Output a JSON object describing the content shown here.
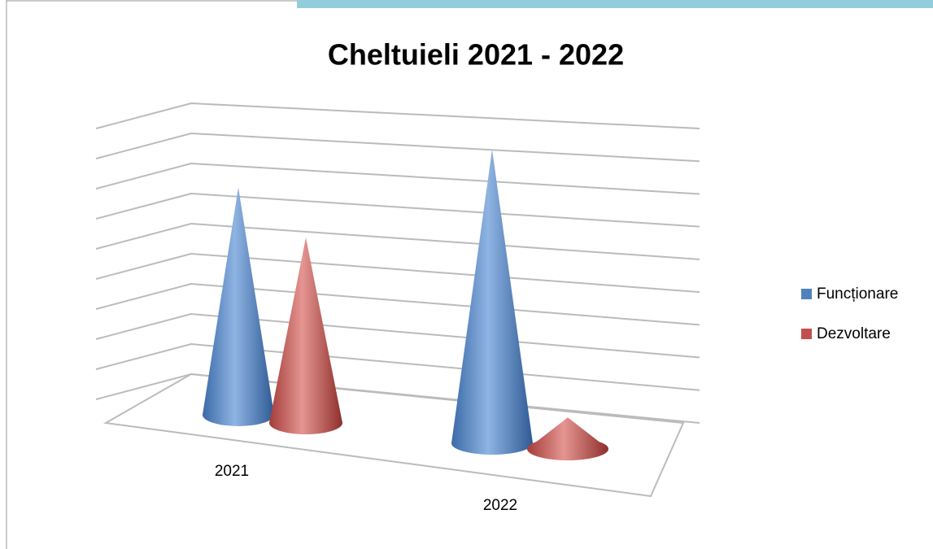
{
  "chart_data": {
    "type": "cone3d",
    "title": "Cheltuieli 2021 - 2022",
    "categories": [
      "2021",
      "2022"
    ],
    "series": [
      {
        "name": "Funcționare",
        "color": "#4f81bd",
        "values": [
          6.5,
          8.4
        ]
      },
      {
        "name": "Dezvoltare",
        "color": "#c0504d",
        "values": [
          5.3,
          0.9
        ]
      }
    ],
    "ylim": [
      0,
      9
    ],
    "yticks": [
      0,
      1,
      2,
      3,
      4,
      5,
      6,
      7,
      8,
      9
    ],
    "grid": true,
    "legend": "right"
  }
}
